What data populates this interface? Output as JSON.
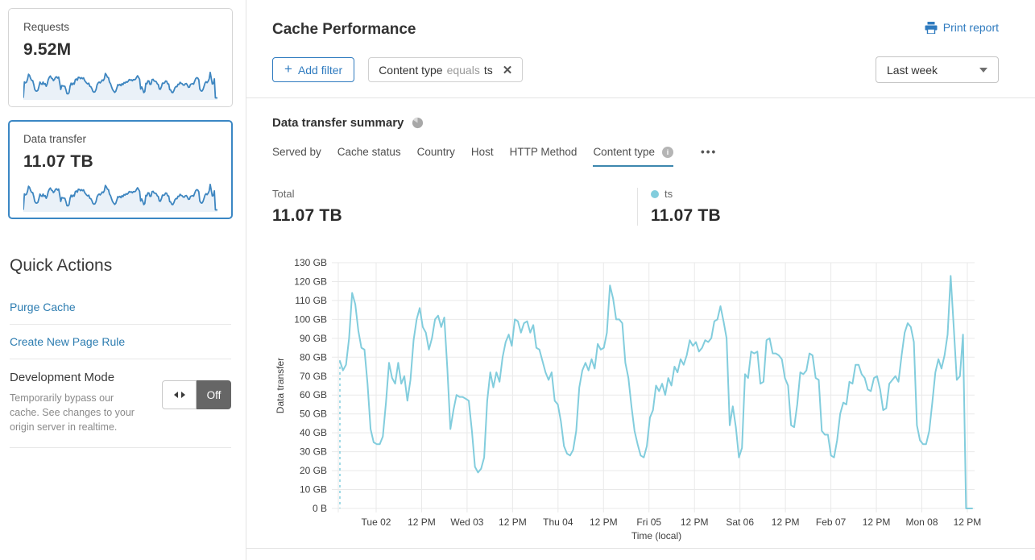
{
  "colors": {
    "accent_blue": "#3b87c4",
    "link_blue": "#2c7cb0",
    "button_blue": "#2f7bbf",
    "tab_underline": "#3d87ae",
    "chart_line": "#82cddd",
    "sparkline_blue": "#3e86c0",
    "toggle_off_bg": "#666666"
  },
  "sidebar": {
    "cards": [
      {
        "label": "Requests",
        "value": "9.52M",
        "selected": false
      },
      {
        "label": "Data transfer",
        "value": "11.07 TB",
        "selected": true
      }
    ],
    "quick_actions": {
      "title": "Quick Actions",
      "links": [
        {
          "label": "Purge Cache"
        },
        {
          "label": "Create New Page Rule"
        }
      ],
      "dev_mode": {
        "label": "Development Mode",
        "description": "Temporarily bypass our cache. See changes to your origin server in realtime.",
        "toggle_state": "Off"
      }
    }
  },
  "header": {
    "title": "Cache Performance",
    "print_label": "Print report",
    "add_filter_label": "Add filter",
    "filter_chip": {
      "field": "Content type",
      "operator": "equals",
      "value": "ts"
    },
    "time_range": "Last week"
  },
  "summary": {
    "title": "Data transfer summary",
    "tabs": [
      "Served by",
      "Cache status",
      "Country",
      "Host",
      "HTTP Method",
      "Content type"
    ],
    "active_tab": "Content type",
    "total_label": "Total",
    "total_value": "11.07 TB",
    "legend": {
      "name": "ts",
      "value": "11.07 TB"
    }
  },
  "chart_data": [
    {
      "type": "line",
      "title": "Data transfer summary — ts",
      "xlabel": "Time (local)",
      "ylabel": "Data transfer",
      "ylim": [
        0,
        130
      ],
      "y_unit": "GB",
      "y_ticks": [
        "0 B",
        "10 GB",
        "20 GB",
        "30 GB",
        "40 GB",
        "50 GB",
        "60 GB",
        "70 GB",
        "80 GB",
        "90 GB",
        "100 GB",
        "110 GB",
        "120 GB",
        "130 GB"
      ],
      "x_ticks": [
        "Tue 02",
        "12 PM",
        "Wed 03",
        "12 PM",
        "Thu 04",
        "12 PM",
        "Fri 05",
        "12 PM",
        "Sat 06",
        "12 PM",
        "Feb 07",
        "12 PM",
        "Mon 08",
        "12 PM"
      ],
      "grid": true,
      "legend_position": "top-right",
      "start_marker": "dashed-vertical",
      "series": [
        {
          "name": "ts",
          "color": "#82cddd",
          "unit": "GB",
          "values": [
            78,
            73,
            76,
            90,
            114,
            108,
            94,
            85,
            84,
            66,
            42,
            35,
            34,
            34,
            38,
            56,
            77,
            69,
            66,
            77,
            66,
            70,
            57,
            68,
            89,
            100,
            106,
            96,
            93,
            84,
            90,
            100,
            102,
            96,
            101,
            74,
            42,
            52,
            60,
            59,
            59,
            58,
            57,
            41,
            22,
            19,
            21,
            27,
            57,
            72,
            64,
            72,
            67,
            80,
            88,
            92,
            86,
            100,
            99,
            93,
            98,
            99,
            93,
            97,
            85,
            84,
            78,
            72,
            68,
            72,
            57,
            55,
            46,
            33,
            29,
            28,
            31,
            41,
            64,
            73,
            77,
            73,
            79,
            74,
            87,
            84,
            85,
            93,
            118,
            111,
            100,
            100,
            98,
            77,
            69,
            54,
            41,
            34,
            28,
            27,
            33,
            48,
            52,
            65,
            62,
            66,
            60,
            69,
            65,
            75,
            72,
            79,
            76,
            81,
            89,
            86,
            88,
            83,
            85,
            89,
            88,
            90,
            99,
            100,
            107,
            99,
            90,
            44,
            54,
            43,
            27,
            32,
            71,
            69,
            83,
            82,
            83,
            66,
            67,
            89,
            90,
            82,
            82,
            81,
            79,
            69,
            65,
            44,
            43,
            55,
            72,
            71,
            73,
            82,
            81,
            69,
            68,
            41,
            39,
            39,
            28,
            27,
            36,
            50,
            56,
            55,
            67,
            66,
            76,
            76,
            71,
            69,
            63,
            62,
            69,
            70,
            63,
            52,
            53,
            66,
            68,
            70,
            67,
            81,
            93,
            98,
            96,
            88,
            44,
            36,
            34,
            34,
            41,
            56,
            72,
            79,
            74,
            81,
            92,
            123,
            96,
            68,
            70,
            92,
            0,
            0,
            0
          ]
        }
      ]
    },
    {
      "type": "sparkline",
      "applies_to": [
        "Requests card",
        "Data transfer card"
      ],
      "unit": "relative (shape estimate, 0-130)",
      "values": [
        2,
        78,
        73,
        76,
        90,
        114,
        108,
        94,
        85,
        84,
        66,
        42,
        35,
        34,
        38,
        56,
        77,
        69,
        66,
        77,
        66,
        70,
        57,
        68,
        89,
        100,
        106,
        96,
        93,
        84,
        90,
        100,
        102,
        96,
        101,
        74,
        42,
        60,
        59,
        58,
        57,
        41,
        22,
        21,
        27,
        57,
        72,
        64,
        72,
        67,
        88,
        92,
        86,
        100,
        99,
        93,
        98,
        93,
        97,
        85,
        78,
        72,
        68,
        72,
        57,
        55,
        46,
        33,
        29,
        31,
        41,
        64,
        73,
        77,
        73,
        79,
        87,
        84,
        93,
        118,
        111,
        100,
        98,
        77,
        69,
        54,
        41,
        34,
        28,
        33,
        48,
        65,
        62,
        66,
        60,
        69,
        65,
        75,
        72,
        79,
        76,
        81,
        89,
        86,
        88,
        83,
        89,
        88,
        90,
        99,
        107,
        99,
        90,
        44,
        54,
        43,
        27,
        32,
        71,
        69,
        83,
        82,
        66,
        67,
        89,
        90,
        82,
        81,
        79,
        69,
        65,
        44,
        43,
        55,
        72,
        71,
        73,
        82,
        81,
        69,
        68,
        41,
        39,
        28,
        27,
        36,
        50,
        56,
        55,
        67,
        66,
        76,
        71,
        69,
        63,
        62,
        69,
        70,
        63,
        52,
        53,
        66,
        68,
        70,
        67,
        81,
        93,
        98,
        96,
        88,
        44,
        36,
        34,
        41,
        56,
        72,
        79,
        74,
        81,
        92,
        123,
        96,
        68,
        70,
        92,
        2,
        2,
        2
      ]
    }
  ]
}
